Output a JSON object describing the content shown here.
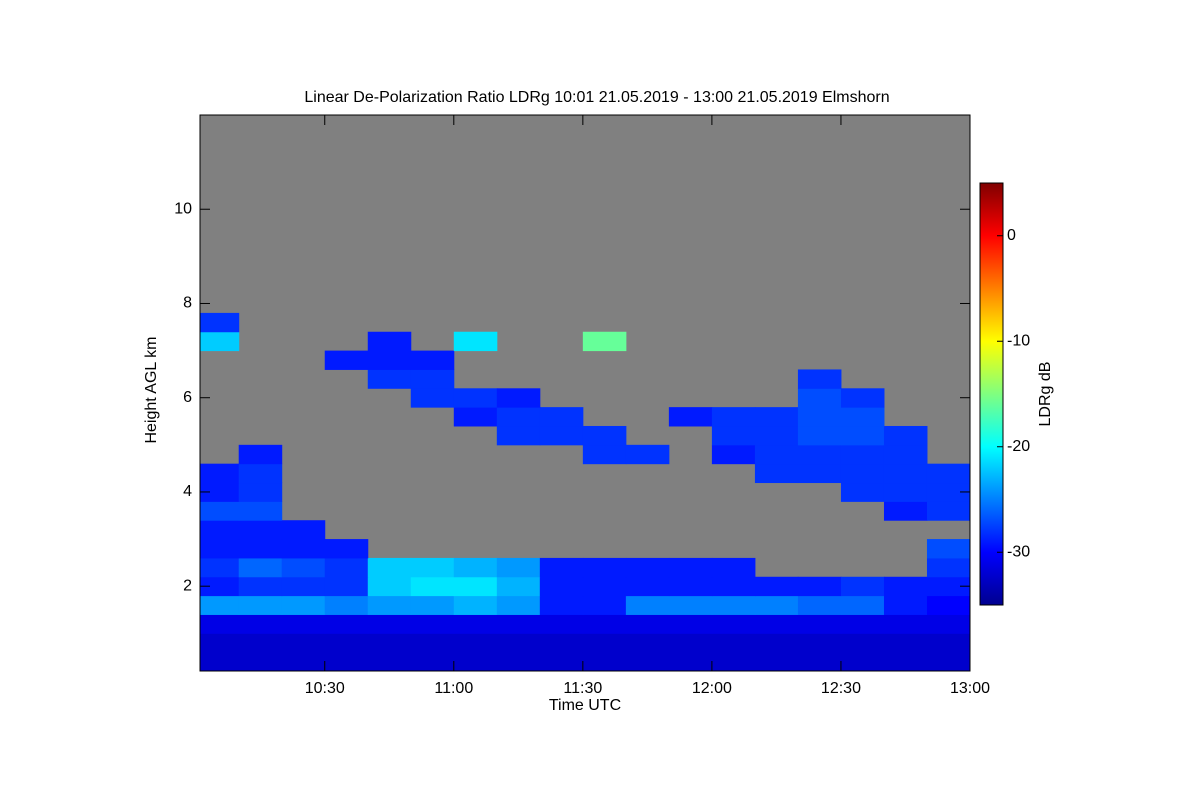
{
  "chart_data": {
    "type": "heatmap",
    "title": "Linear De-Polarization Ratio LDRg   10:01 21.05.2019 - 13:00 21.05.2019 Elmshorn",
    "x_label": "Time UTC",
    "y_label": "Height AGL km",
    "colorbar_label": "LDRg dB",
    "colormap": "jet",
    "missing_color": "#808080",
    "xlim": [
      10.0167,
      13
    ],
    "xticks": [
      {
        "value": 10.5,
        "label": "10:30"
      },
      {
        "value": 11,
        "label": "11:00"
      },
      {
        "value": 11.5,
        "label": "11:30"
      },
      {
        "value": 12,
        "label": "12:00"
      },
      {
        "value": 12.5,
        "label": "12:30"
      },
      {
        "value": 13,
        "label": "13:00"
      }
    ],
    "ylim": [
      0.2,
      12
    ],
    "yticks": [
      2,
      4,
      6,
      8,
      10
    ],
    "zlim": [
      -35,
      5
    ],
    "zticks": [
      0,
      -10,
      -20,
      -30
    ],
    "x_bins": [
      10.0167,
      10.1667,
      10.3333,
      10.5,
      10.6667,
      10.8333,
      11,
      11.1667,
      11.3333,
      11.5,
      11.6667,
      11.8333,
      12,
      12.1667,
      12.3333,
      12.5,
      12.6667,
      12.8333,
      13
    ],
    "y_bins": [
      0.2,
      0.6,
      1.0,
      1.4,
      1.8,
      2.2,
      2.6,
      3.0,
      3.4,
      3.8,
      4.2,
      4.6,
      5.0,
      5.4,
      5.8,
      6.2,
      6.6,
      7.0,
      7.4,
      7.8,
      12
    ],
    "z": [
      [
        -32,
        -32,
        -32,
        -32,
        -32,
        -32,
        -32,
        -32,
        -32,
        -32,
        -32,
        -32,
        -32,
        -32,
        -32,
        -32,
        -32,
        -32
      ],
      [
        -32,
        -32,
        -32,
        -32,
        -32,
        -32,
        -32,
        -32,
        -32,
        -32,
        -32,
        -32,
        -32,
        -32,
        -32,
        -32,
        -32,
        -32
      ],
      [
        -31,
        -31,
        -31,
        -31,
        -31,
        -31,
        -31,
        -31,
        -31,
        -31,
        -31,
        -31,
        -31,
        -31,
        -31,
        -31,
        -31,
        -31
      ],
      [
        -24,
        -24,
        -24,
        -25,
        -24,
        -24,
        -23,
        -24,
        -29,
        -29,
        -25,
        -25,
        -25,
        -25,
        -26,
        -26,
        -29,
        -30
      ],
      [
        -29,
        -28,
        -28,
        -28,
        -22,
        -21,
        -21,
        -23,
        -29,
        -29,
        -29,
        -29,
        -29,
        -29,
        -29,
        -28,
        -29,
        -29
      ],
      [
        -28,
        -26,
        -27,
        -28,
        -22,
        -22,
        -23,
        -24,
        -29,
        -29,
        -29,
        -29,
        -29,
        null,
        null,
        null,
        null,
        -28
      ],
      [
        -29,
        -29,
        -29,
        -29,
        null,
        null,
        null,
        null,
        null,
        null,
        null,
        null,
        null,
        null,
        null,
        null,
        null,
        -27
      ],
      [
        -29,
        -29,
        -29,
        null,
        null,
        null,
        null,
        null,
        null,
        null,
        null,
        null,
        null,
        null,
        null,
        null,
        null,
        null
      ],
      [
        -27,
        -27,
        null,
        null,
        null,
        null,
        null,
        null,
        null,
        null,
        null,
        null,
        null,
        null,
        null,
        null,
        -29,
        -28
      ],
      [
        -29,
        -28,
        null,
        null,
        null,
        null,
        null,
        null,
        null,
        null,
        null,
        null,
        null,
        null,
        null,
        -28,
        -28,
        -28
      ],
      [
        -29,
        -28,
        null,
        null,
        null,
        null,
        null,
        null,
        null,
        null,
        null,
        null,
        null,
        -28,
        -28,
        -28,
        -28,
        -28
      ],
      [
        null,
        -29,
        null,
        null,
        null,
        null,
        null,
        null,
        null,
        -28,
        -28,
        null,
        -29,
        -28,
        -28,
        -28,
        -28,
        null
      ],
      [
        null,
        null,
        null,
        null,
        null,
        null,
        null,
        -28,
        -28,
        -28,
        null,
        null,
        -28,
        -28,
        -27,
        -27,
        -28,
        null
      ],
      [
        null,
        null,
        null,
        null,
        null,
        null,
        -29,
        -28,
        -28,
        null,
        null,
        -29,
        -28,
        -28,
        -27,
        -27,
        null,
        null
      ],
      [
        null,
        null,
        null,
        null,
        null,
        -28,
        -28,
        -29,
        null,
        null,
        null,
        null,
        null,
        null,
        -27,
        -28,
        null,
        null
      ],
      [
        null,
        null,
        null,
        null,
        -28,
        -28,
        null,
        null,
        null,
        null,
        null,
        null,
        null,
        null,
        -28,
        null,
        null,
        null
      ],
      [
        null,
        null,
        null,
        -29,
        -29,
        -29,
        null,
        null,
        null,
        null,
        null,
        null,
        null,
        null,
        null,
        null,
        null,
        null
      ],
      [
        -22,
        null,
        null,
        null,
        -29,
        null,
        -21,
        null,
        null,
        -16,
        null,
        null,
        null,
        null,
        null,
        null,
        null,
        null
      ],
      [
        -28,
        null,
        null,
        null,
        null,
        null,
        null,
        null,
        null,
        null,
        null,
        null,
        null,
        null,
        null,
        null,
        null,
        null
      ],
      [
        null,
        null,
        null,
        null,
        null,
        null,
        null,
        null,
        null,
        null,
        null,
        null,
        null,
        null,
        null,
        null,
        null,
        null
      ]
    ]
  }
}
